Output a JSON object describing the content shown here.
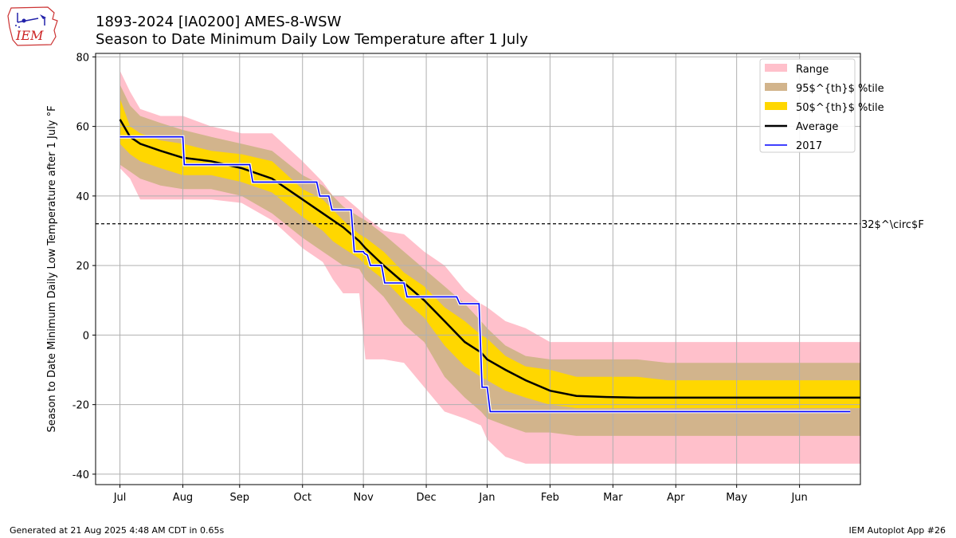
{
  "logo_text": "IEM",
  "header": {
    "title_line1": "1893-2024 [IA0200] AMES-8-WSW",
    "title_line2": "Season to Date Minimum Daily Low Temperature after 1 July"
  },
  "footer": {
    "generated": "Generated at 21 Aug 2025 4:48 AM CDT in 0.65s",
    "app": "IEM Autoplot App #26"
  },
  "colors": {
    "range": "#ffc0cb",
    "p95": "#d2b48c",
    "p50": "#ffd700",
    "average": "#000000",
    "year": "#0000ff",
    "grid": "#b0b0b0"
  },
  "chart_data": {
    "type": "area",
    "title": "1893-2024 [IA0200] AMES-8-WSW",
    "subtitle": "Season to Date Minimum Daily Low Temperature after 1 July",
    "xlabel": "",
    "ylabel": "Season to Date Minimum Daily Low Temperature after 1 July °F",
    "x_unit": "day of season after 1 July",
    "xlim": [
      -12,
      365
    ],
    "ylim": [
      -43,
      81
    ],
    "grid": true,
    "legend_position": "top-right",
    "x_ticks": [
      {
        "label": "Jul",
        "day": 0
      },
      {
        "label": "Aug",
        "day": 31
      },
      {
        "label": "Sep",
        "day": 59
      },
      {
        "label": "Oct",
        "day": 90
      },
      {
        "label": "Nov",
        "day": 120
      },
      {
        "label": "Dec",
        "day": 151
      },
      {
        "label": "Jan",
        "day": 181
      },
      {
        "label": "Feb",
        "day": 212
      },
      {
        "label": "Mar",
        "day": 243
      },
      {
        "label": "Apr",
        "day": 274
      },
      {
        "label": "May",
        "day": 304
      },
      {
        "label": "Jun",
        "day": 335
      }
    ],
    "y_ticks": [
      -40,
      -20,
      0,
      20,
      40,
      60,
      80
    ],
    "reference_line": {
      "value": 32,
      "label": "32$^\\circ$F"
    },
    "legend": [
      {
        "label": "Range",
        "kind": "patch",
        "color": "#ffc0cb"
      },
      {
        "label": "95$^{th}$ %tile",
        "kind": "patch",
        "color": "#d2b48c"
      },
      {
        "label": "50$^{th}$ %tile",
        "kind": "patch",
        "color": "#ffd700"
      },
      {
        "label": "Average",
        "kind": "line",
        "color": "#000000"
      },
      {
        "label": "2017",
        "kind": "line",
        "color": "#0000ff"
      }
    ],
    "x": [
      0,
      5,
      10,
      20,
      31,
      45,
      60,
      75,
      90,
      100,
      105,
      110,
      118,
      121,
      130,
      140,
      150,
      160,
      170,
      178,
      181,
      190,
      200,
      212,
      225,
      240,
      255,
      270,
      300,
      335,
      365
    ],
    "series": [
      {
        "name": "Range",
        "role": "band",
        "low": [
          48,
          45,
          39,
          39,
          39,
          39,
          38,
          33,
          25,
          21,
          16,
          12,
          12,
          -7,
          -7,
          -8,
          -15,
          -22,
          -24,
          -26,
          -30,
          -35,
          -37,
          -37,
          -37,
          -37,
          -37,
          -37,
          -37,
          -37,
          -37
        ],
        "high": [
          76,
          70,
          65,
          63,
          63,
          60,
          58,
          58,
          50,
          44,
          40,
          40,
          36,
          34,
          30,
          29,
          24,
          20,
          13,
          9,
          8,
          4,
          2,
          -2,
          -2,
          -2,
          -2,
          -2,
          -2,
          -2,
          -2
        ]
      },
      {
        "name": "95th percentile",
        "role": "band",
        "low": [
          49,
          47,
          45,
          43,
          42,
          42,
          40,
          35,
          28,
          24,
          22,
          20,
          19,
          16,
          11,
          3,
          -2,
          -12,
          -18,
          -22,
          -24,
          -26,
          -28,
          -28,
          -29,
          -29,
          -29,
          -29,
          -29,
          -29,
          -29
        ]
      },
      {
        "name": "95th percentile",
        "role": "band",
        "high": [
          72,
          66,
          63,
          61,
          59,
          57,
          55,
          53,
          46,
          43,
          40,
          37,
          34,
          33,
          29,
          24,
          19,
          14,
          9,
          4,
          2,
          -3,
          -6,
          -7,
          -7,
          -7,
          -7,
          -8,
          -8,
          -8,
          -8
        ]
      },
      {
        "name": "50th percentile",
        "role": "band",
        "low": [
          55,
          52,
          50,
          48,
          46,
          46,
          44,
          41,
          34,
          30,
          27,
          25,
          22,
          20,
          16,
          10,
          5,
          -3,
          -9,
          -12,
          -13,
          -16,
          -18,
          -20,
          -21,
          -21,
          -21,
          -21,
          -21,
          -21,
          -21
        ]
      },
      {
        "name": "50th percentile",
        "role": "band",
        "high": [
          68,
          60,
          58,
          56,
          55,
          53,
          52,
          50,
          42,
          39,
          36,
          33,
          29,
          28,
          24,
          18,
          14,
          8,
          4,
          0,
          -1,
          -6,
          -9,
          -10,
          -12,
          -12,
          -12,
          -13,
          -13,
          -13,
          -13
        ]
      },
      {
        "name": "Average",
        "role": "line",
        "values": [
          62,
          57,
          55,
          53,
          51,
          50,
          48,
          45,
          39,
          35,
          33,
          31,
          27,
          25,
          20,
          15,
          10,
          4,
          -2,
          -5,
          -7,
          -10,
          -13,
          -16,
          -17.5,
          -17.8,
          -18,
          -18,
          -18,
          -18,
          -18
        ]
      },
      {
        "name": "2017",
        "role": "step",
        "x": [
          0,
          31,
          31.7,
          64,
          65.5,
          97,
          98.5,
          103,
          104.5,
          114,
          115.5,
          120,
          120.5,
          122,
          123.5,
          129,
          130.5,
          140,
          141.5,
          151,
          152.5,
          166,
          167.5,
          173,
          174.5,
          177,
          178.5,
          181,
          182.5,
          360
        ],
        "values": [
          57,
          57,
          49,
          49,
          44,
          44,
          40,
          40,
          36,
          36,
          24,
          24,
          23.5,
          23,
          20,
          20,
          15,
          15,
          11,
          11,
          11,
          11,
          9,
          9,
          9,
          9,
          -15,
          -15,
          -22,
          -22
        ]
      }
    ]
  }
}
